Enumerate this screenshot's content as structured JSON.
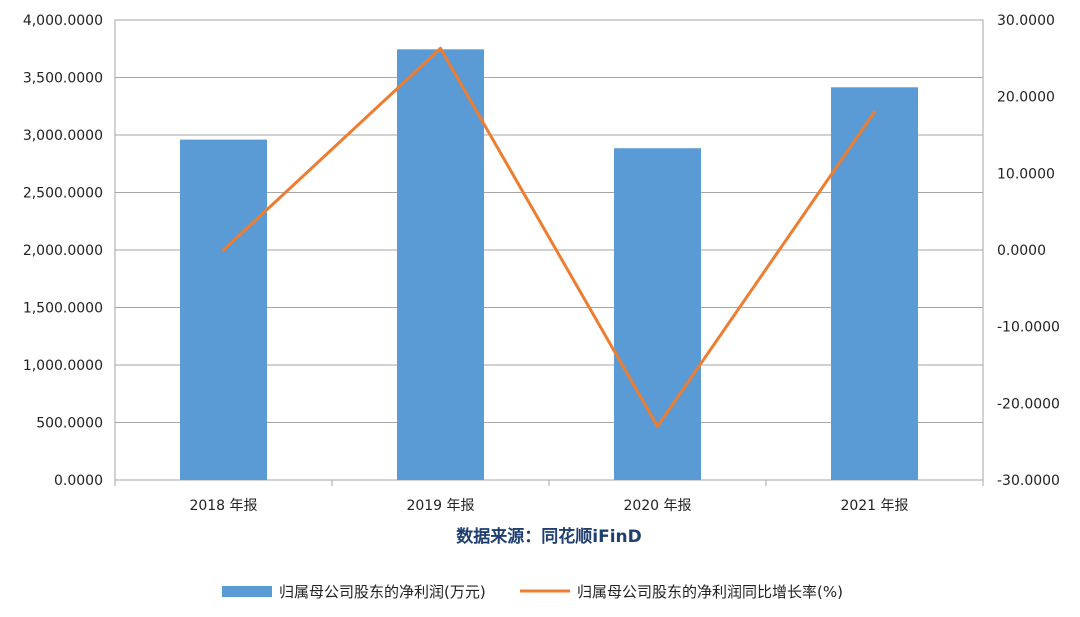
{
  "chart_data": {
    "type": "bar",
    "categories": [
      "2018 年报",
      "2019 年报",
      "2020 年报",
      "2021 年报"
    ],
    "series": [
      {
        "name": "归属母公司股东的净利润(万元)",
        "type": "bar",
        "axis": "left",
        "color": "#5b9bd5",
        "values": [
          2960,
          3745,
          2885,
          3415
        ]
      },
      {
        "name": "归属母公司股东的净利润同比增长率(%)",
        "type": "line",
        "axis": "right",
        "color": "#ed7d31",
        "values": [
          0.0,
          26.3,
          -23.0,
          18.0
        ]
      }
    ],
    "y_left": {
      "ylim": [
        0,
        4000
      ],
      "ticks": [
        0,
        500,
        1000,
        1500,
        2000,
        2500,
        3000,
        3500,
        4000
      ],
      "tick_labels": [
        "0.0000",
        "500.0000",
        "1,000.0000",
        "1,500.0000",
        "2,000.0000",
        "2,500.0000",
        "3,000.0000",
        "3,500.0000",
        "4,000.0000"
      ]
    },
    "y_right": {
      "ylim": [
        -30,
        30
      ],
      "ticks": [
        -30,
        -20,
        -10,
        0,
        10,
        20,
        30
      ],
      "tick_labels": [
        "-30.0000",
        "-20.0000",
        "-10.0000",
        "0.0000",
        "10.0000",
        "20.0000",
        "30.0000"
      ]
    },
    "source_text": "数据来源：同花顺iFinD",
    "legend_position": "bottom",
    "grid": "horizontal"
  }
}
